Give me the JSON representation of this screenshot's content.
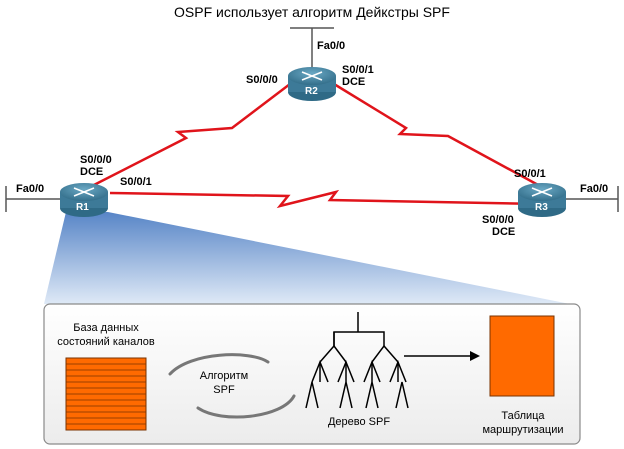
{
  "title": "OSPF использует алгоритм Дейкстры SPF",
  "routers": {
    "r1": {
      "name": "R1"
    },
    "r2": {
      "name": "R2"
    },
    "r3": {
      "name": "R3"
    }
  },
  "interfaces": {
    "r2_fa": "Fa0/0",
    "r2_s000": "S0/0/0",
    "r2_s001": "S0/0/1",
    "r2_dce": "DCE",
    "r1_fa": "Fa0/0",
    "r1_s000": "S0/0/0",
    "r1_dce": "DCE",
    "r1_s001": "S0/0/1",
    "r3_s001": "S0/0/1",
    "r3_fa": "Fa0/0",
    "r3_s000": "S0/0/0",
    "r3_dce": "DCE"
  },
  "detail": {
    "lsdb_line1": "База данных",
    "lsdb_line2": "состояний каналов",
    "spf_line1": "Алгоритм",
    "spf_line2": "SPF",
    "tree_label": "Дерево SPF",
    "table_line1": "Таблица",
    "table_line2": "маршрутизации"
  },
  "colors": {
    "serial_link": "#e0141b",
    "router_body": "#4a8aa8",
    "orange": "#ff6a00",
    "wedge_top": "#5c86c8"
  }
}
